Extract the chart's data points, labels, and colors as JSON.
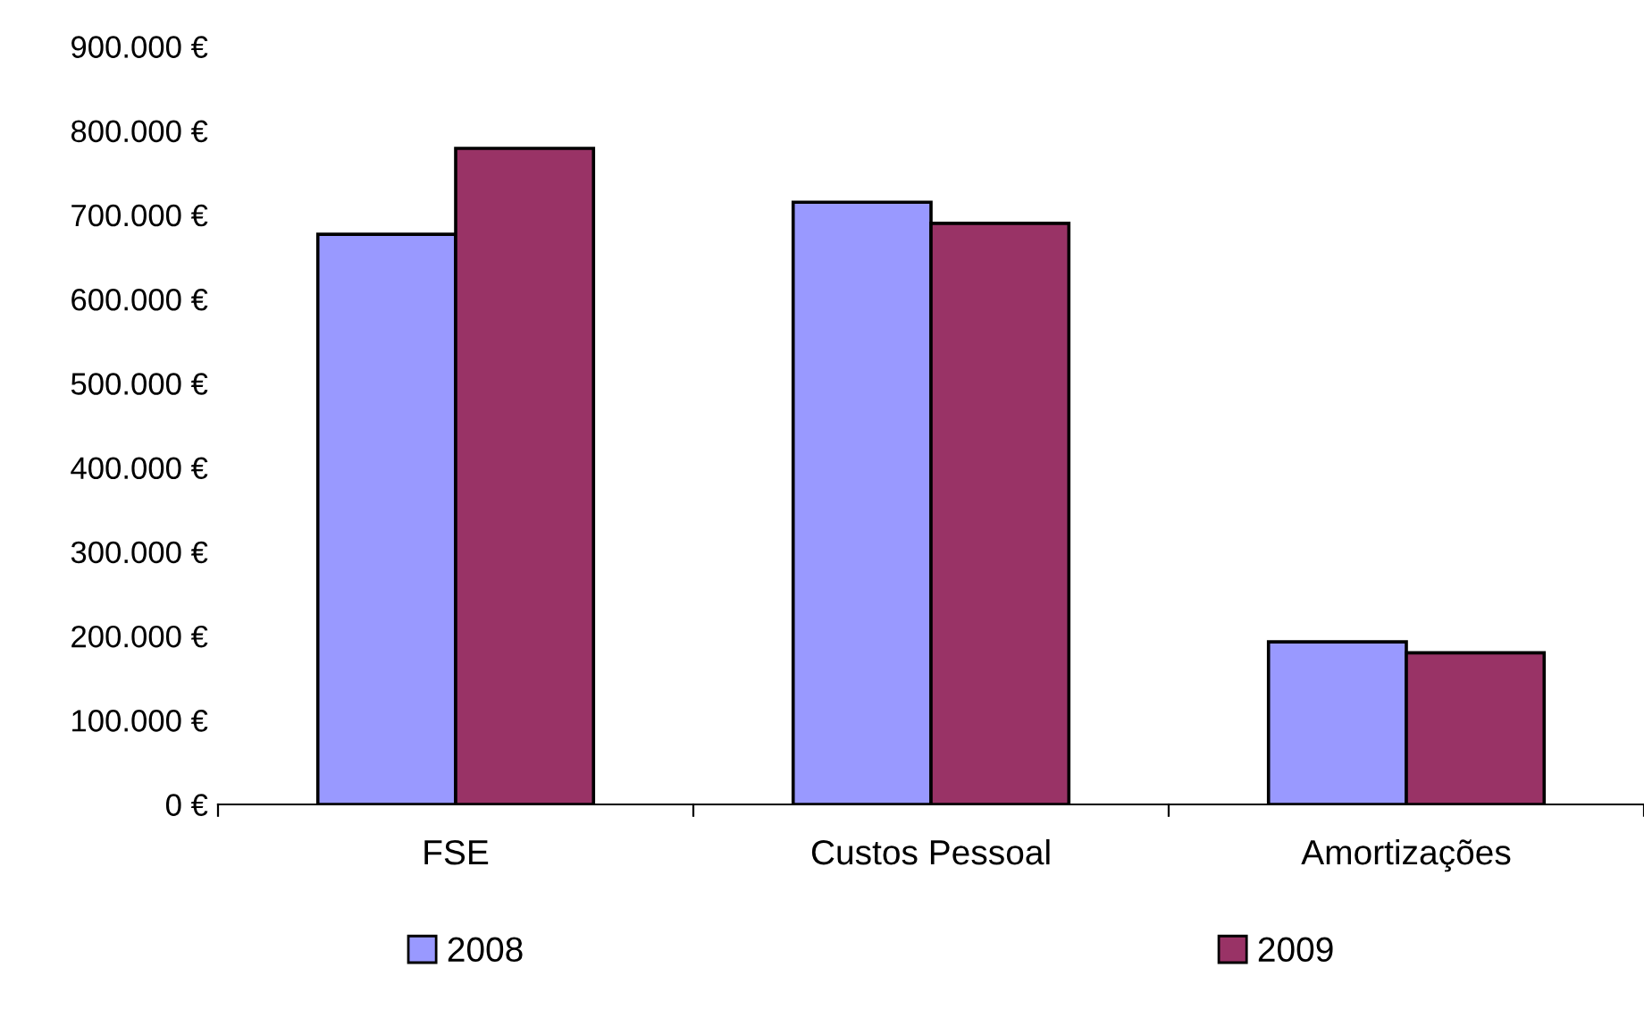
{
  "chart_data": {
    "type": "bar",
    "categories": [
      "FSE",
      "Custos Pessoal",
      "Amortizações"
    ],
    "series": [
      {
        "name": "2008",
        "color": "#9999ff",
        "values": [
          677000,
          715000,
          193000
        ]
      },
      {
        "name": "2009",
        "color": "#993366",
        "values": [
          779000,
          690000,
          180000
        ]
      }
    ],
    "ylim": [
      0,
      900000
    ],
    "yticks": [
      {
        "value": 0,
        "label": "0 €"
      },
      {
        "value": 100000,
        "label": "100.000 €"
      },
      {
        "value": 200000,
        "label": "200.000 €"
      },
      {
        "value": 300000,
        "label": "300.000 €"
      },
      {
        "value": 400000,
        "label": "400.000 €"
      },
      {
        "value": 500000,
        "label": "500.000 €"
      },
      {
        "value": 600000,
        "label": "600.000 €"
      },
      {
        "value": 700000,
        "label": "700.000 €"
      },
      {
        "value": 800000,
        "label": "800.000 €"
      },
      {
        "value": 900000,
        "label": "900.000 €"
      }
    ],
    "grid": false,
    "legend": "bottom"
  }
}
